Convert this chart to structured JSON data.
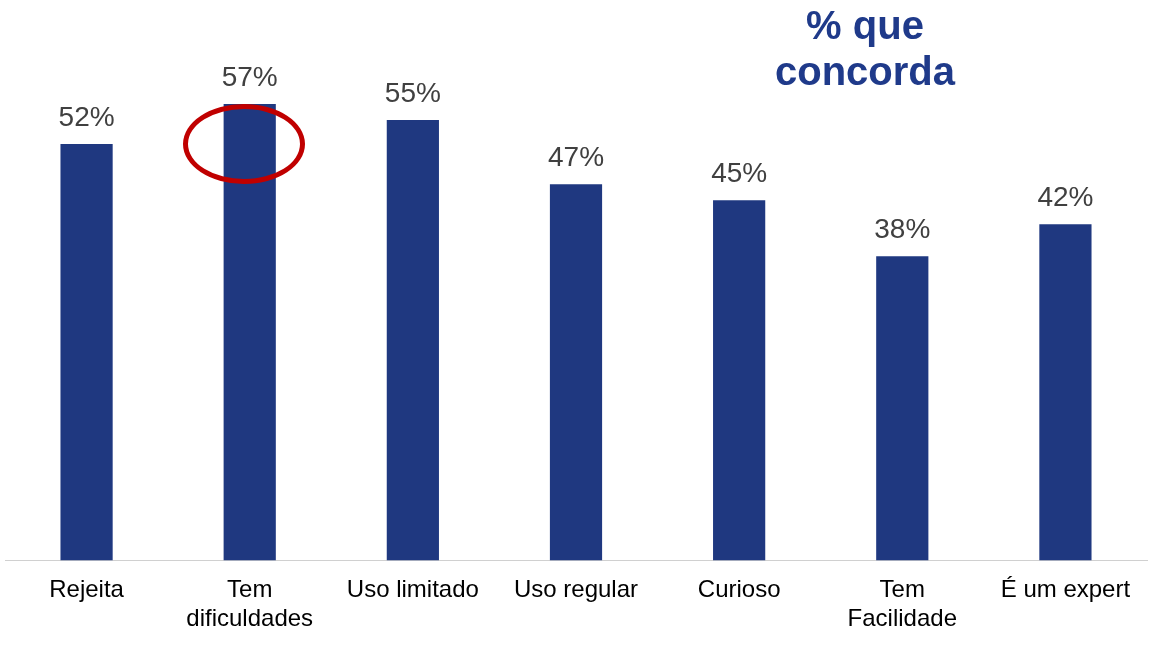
{
  "chart_data": {
    "type": "bar",
    "title": "% que concorda",
    "categories": [
      "Rejeita",
      "Tem dificuldades",
      "Uso limitado",
      "Uso regular",
      "Curioso",
      "Tem Facilidade",
      "É um expert"
    ],
    "values": [
      52,
      57,
      55,
      47,
      45,
      38,
      42
    ],
    "value_labels": [
      "52%",
      "57%",
      "55%",
      "47%",
      "45%",
      "38%",
      "42%"
    ],
    "color": "#1f3880"
  }
}
